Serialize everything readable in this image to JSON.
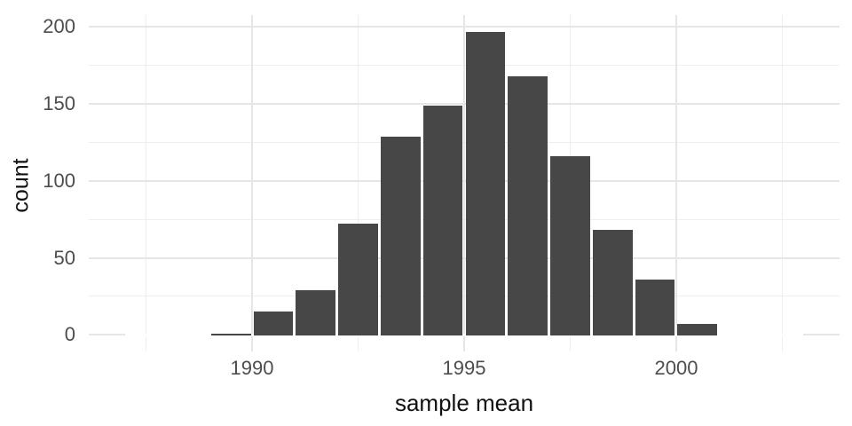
{
  "chart_data": {
    "type": "bar",
    "subtype": "histogram",
    "title": "",
    "xlabel": "sample mean",
    "ylabel": "count",
    "legend": "none",
    "grid": "major+minor",
    "bin_width": 1,
    "bins": [
      {
        "start": 1987,
        "end": 1988,
        "count": 0
      },
      {
        "start": 1988,
        "end": 1989,
        "count": 0
      },
      {
        "start": 1989,
        "end": 1990,
        "count": 1
      },
      {
        "start": 1990,
        "end": 1991,
        "count": 15
      },
      {
        "start": 1991,
        "end": 1992,
        "count": 29
      },
      {
        "start": 1992,
        "end": 1993,
        "count": 72
      },
      {
        "start": 1993,
        "end": 1994,
        "count": 129
      },
      {
        "start": 1994,
        "end": 1995,
        "count": 149
      },
      {
        "start": 1995,
        "end": 1996,
        "count": 197
      },
      {
        "start": 1996,
        "end": 1997,
        "count": 168
      },
      {
        "start": 1997,
        "end": 1998,
        "count": 116
      },
      {
        "start": 1998,
        "end": 1999,
        "count": 68
      },
      {
        "start": 1999,
        "end": 2000,
        "count": 36
      },
      {
        "start": 2000,
        "end": 2001,
        "count": 7
      },
      {
        "start": 2001,
        "end": 2002,
        "count": 0
      },
      {
        "start": 2002,
        "end": 2003,
        "count": 0
      }
    ],
    "x_major_ticks": [
      1990,
      1995,
      2000
    ],
    "x_minor_gridlines": [
      1987.5,
      1992.5,
      1997.5,
      2002.5
    ],
    "y_major_ticks": [
      0,
      50,
      100,
      150,
      200
    ],
    "y_minor_gridlines": [
      25,
      75,
      125,
      175
    ],
    "xlim": [
      1986.15,
      2003.85
    ],
    "ylim": [
      -10.75,
      207.75
    ],
    "colors": {
      "bar_fill": "#474747",
      "bar_gap": "#ffffff",
      "grid_major": "#e6e6e6",
      "grid_minor": "#efefef",
      "tick_text": "#4d4d4d",
      "axis_title_text": "#111111",
      "background": "#ffffff"
    }
  }
}
